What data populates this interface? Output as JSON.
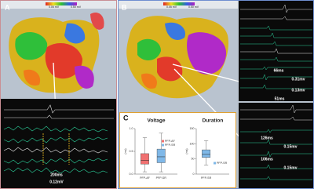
{
  "panels": {
    "a": {
      "label": "A",
      "colorbar_min": "0.05 mV",
      "colorbar_max": "0.50 mV",
      "annotations": [
        "200ms",
        "0.12mV"
      ]
    },
    "b": {
      "label": "B",
      "colorbar_min": "0.05 mV",
      "colorbar_max": "0.50 mV",
      "annotations": [
        "66ms",
        "0.31mv",
        "0.13mv",
        "51ms",
        "126ms",
        "0.15mv",
        "106ms",
        "0.15mv"
      ]
    },
    "c": {
      "label": "C"
    }
  },
  "chart_data": [
    {
      "type": "box",
      "title": "Voltage",
      "y_label": "(mv)",
      "series": [
        {
          "name": "PFP-AF",
          "color": "#f07070",
          "min": 0.05,
          "q1": 0.22,
          "median": 0.3,
          "q3": 0.45,
          "max": 0.8
        },
        {
          "name": "PFP-SR",
          "color": "#7fb8e8",
          "min": 0.05,
          "q1": 0.25,
          "median": 0.38,
          "q3": 0.55,
          "max": 0.9
        }
      ],
      "ylim": [
        0,
        1.0
      ],
      "yticks": [
        {
          "value": 0,
          "label": "0.0"
        },
        {
          "value": 0.5,
          "label": "0.5"
        },
        {
          "value": 1.0,
          "label": "1.0"
        }
      ],
      "legend": "upper-right"
    },
    {
      "type": "box",
      "title": "Duration",
      "y_label": "(ms)",
      "series": [
        {
          "name": "PFP-SR",
          "color": "#7fb8e8",
          "min": 30,
          "q1": 55,
          "median": 65,
          "q3": 80,
          "max": 110
        }
      ],
      "ylim": [
        0,
        150
      ],
      "yticks": [
        0,
        50,
        100,
        150
      ],
      "legend": "lower-right"
    }
  ]
}
